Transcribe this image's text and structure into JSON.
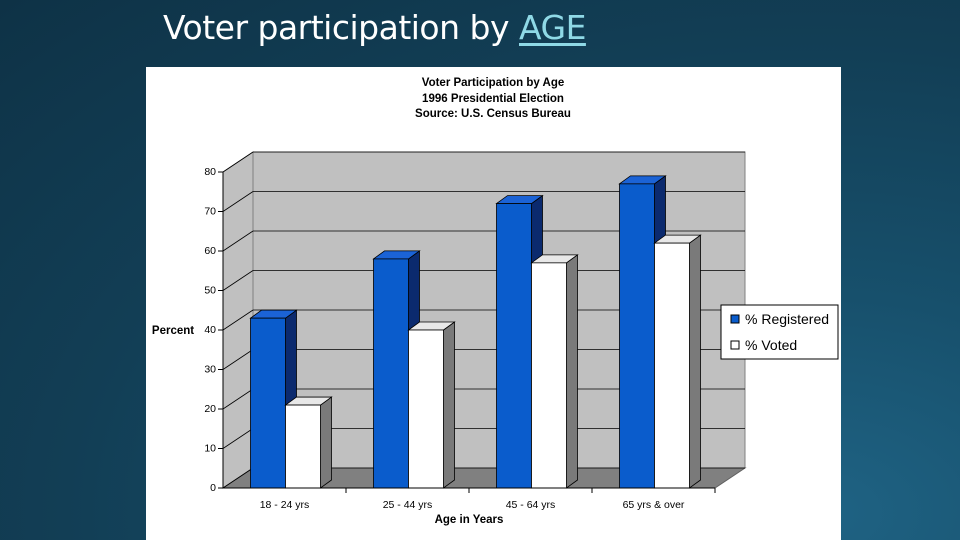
{
  "slide": {
    "title_prefix": "Voter participation by ",
    "title_link": "AGE"
  },
  "colors": {
    "registered": "#0a5ccc",
    "voted": "#ffffff",
    "link": "#8fd9e6"
  },
  "chart_data": {
    "type": "bar",
    "title_lines": [
      "Voter Participation by Age",
      "1996 Presidential Election",
      "Source:  U.S. Census Bureau"
    ],
    "xlabel": "Age in Years",
    "ylabel": "Percent",
    "categories": [
      "18 - 24 yrs",
      "25 - 44 yrs",
      "45 - 64 yrs",
      "65 yrs & over"
    ],
    "series": [
      {
        "name": "% Registered",
        "values": [
          43,
          58,
          72,
          77
        ]
      },
      {
        "name": "% Voted",
        "values": [
          21,
          40,
          57,
          62
        ]
      }
    ],
    "ylim": [
      0,
      80
    ],
    "yticks": [
      0,
      10,
      20,
      30,
      40,
      50,
      60,
      70,
      80
    ],
    "grid": true,
    "legend_position": "right",
    "three_d": true
  }
}
